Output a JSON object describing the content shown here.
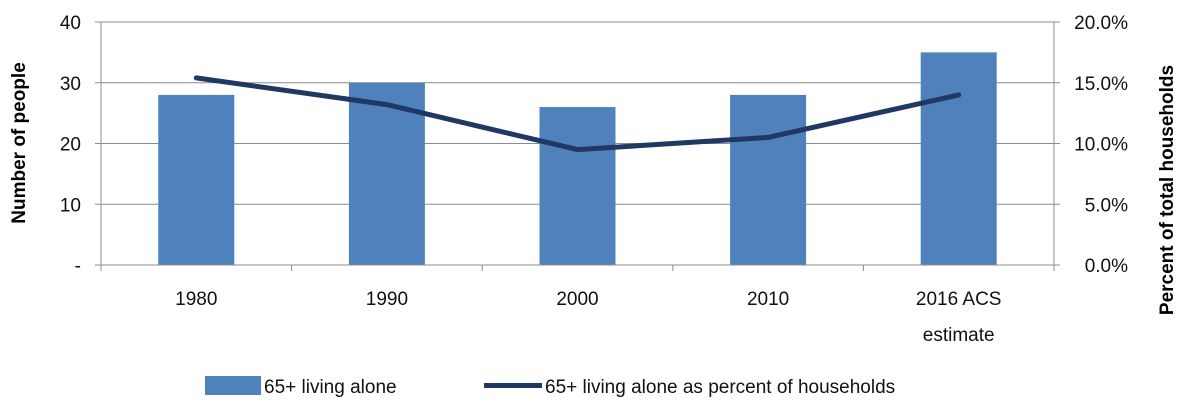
{
  "chart_data": {
    "type": "bar",
    "categories": [
      "1980",
      [
        "1990"
      ],
      "2000",
      "2010",
      "2016 ACS estimate"
    ],
    "series": [
      {
        "name": "65+ living alone",
        "type": "bar",
        "axis": "left",
        "values": [
          28,
          30,
          26,
          28,
          35
        ],
        "color": "#4F81BD"
      },
      {
        "name": "65+ living alone as percent of households",
        "type": "line",
        "axis": "right",
        "values": [
          15.4,
          13.2,
          9.5,
          10.5,
          14.0
        ],
        "color": "#1F3864"
      }
    ],
    "ylabel": "Number of people",
    "y2label": "Percent of total households",
    "ylim": [
      0,
      40
    ],
    "y2lim": [
      0,
      20
    ],
    "yticks": [
      "-",
      "10",
      "20",
      "30",
      "40"
    ],
    "y2ticks": [
      "0.0%",
      "5.0%",
      "10.0%",
      "15.0%",
      "20.0%"
    ],
    "grid": true,
    "legend": "bottom"
  }
}
